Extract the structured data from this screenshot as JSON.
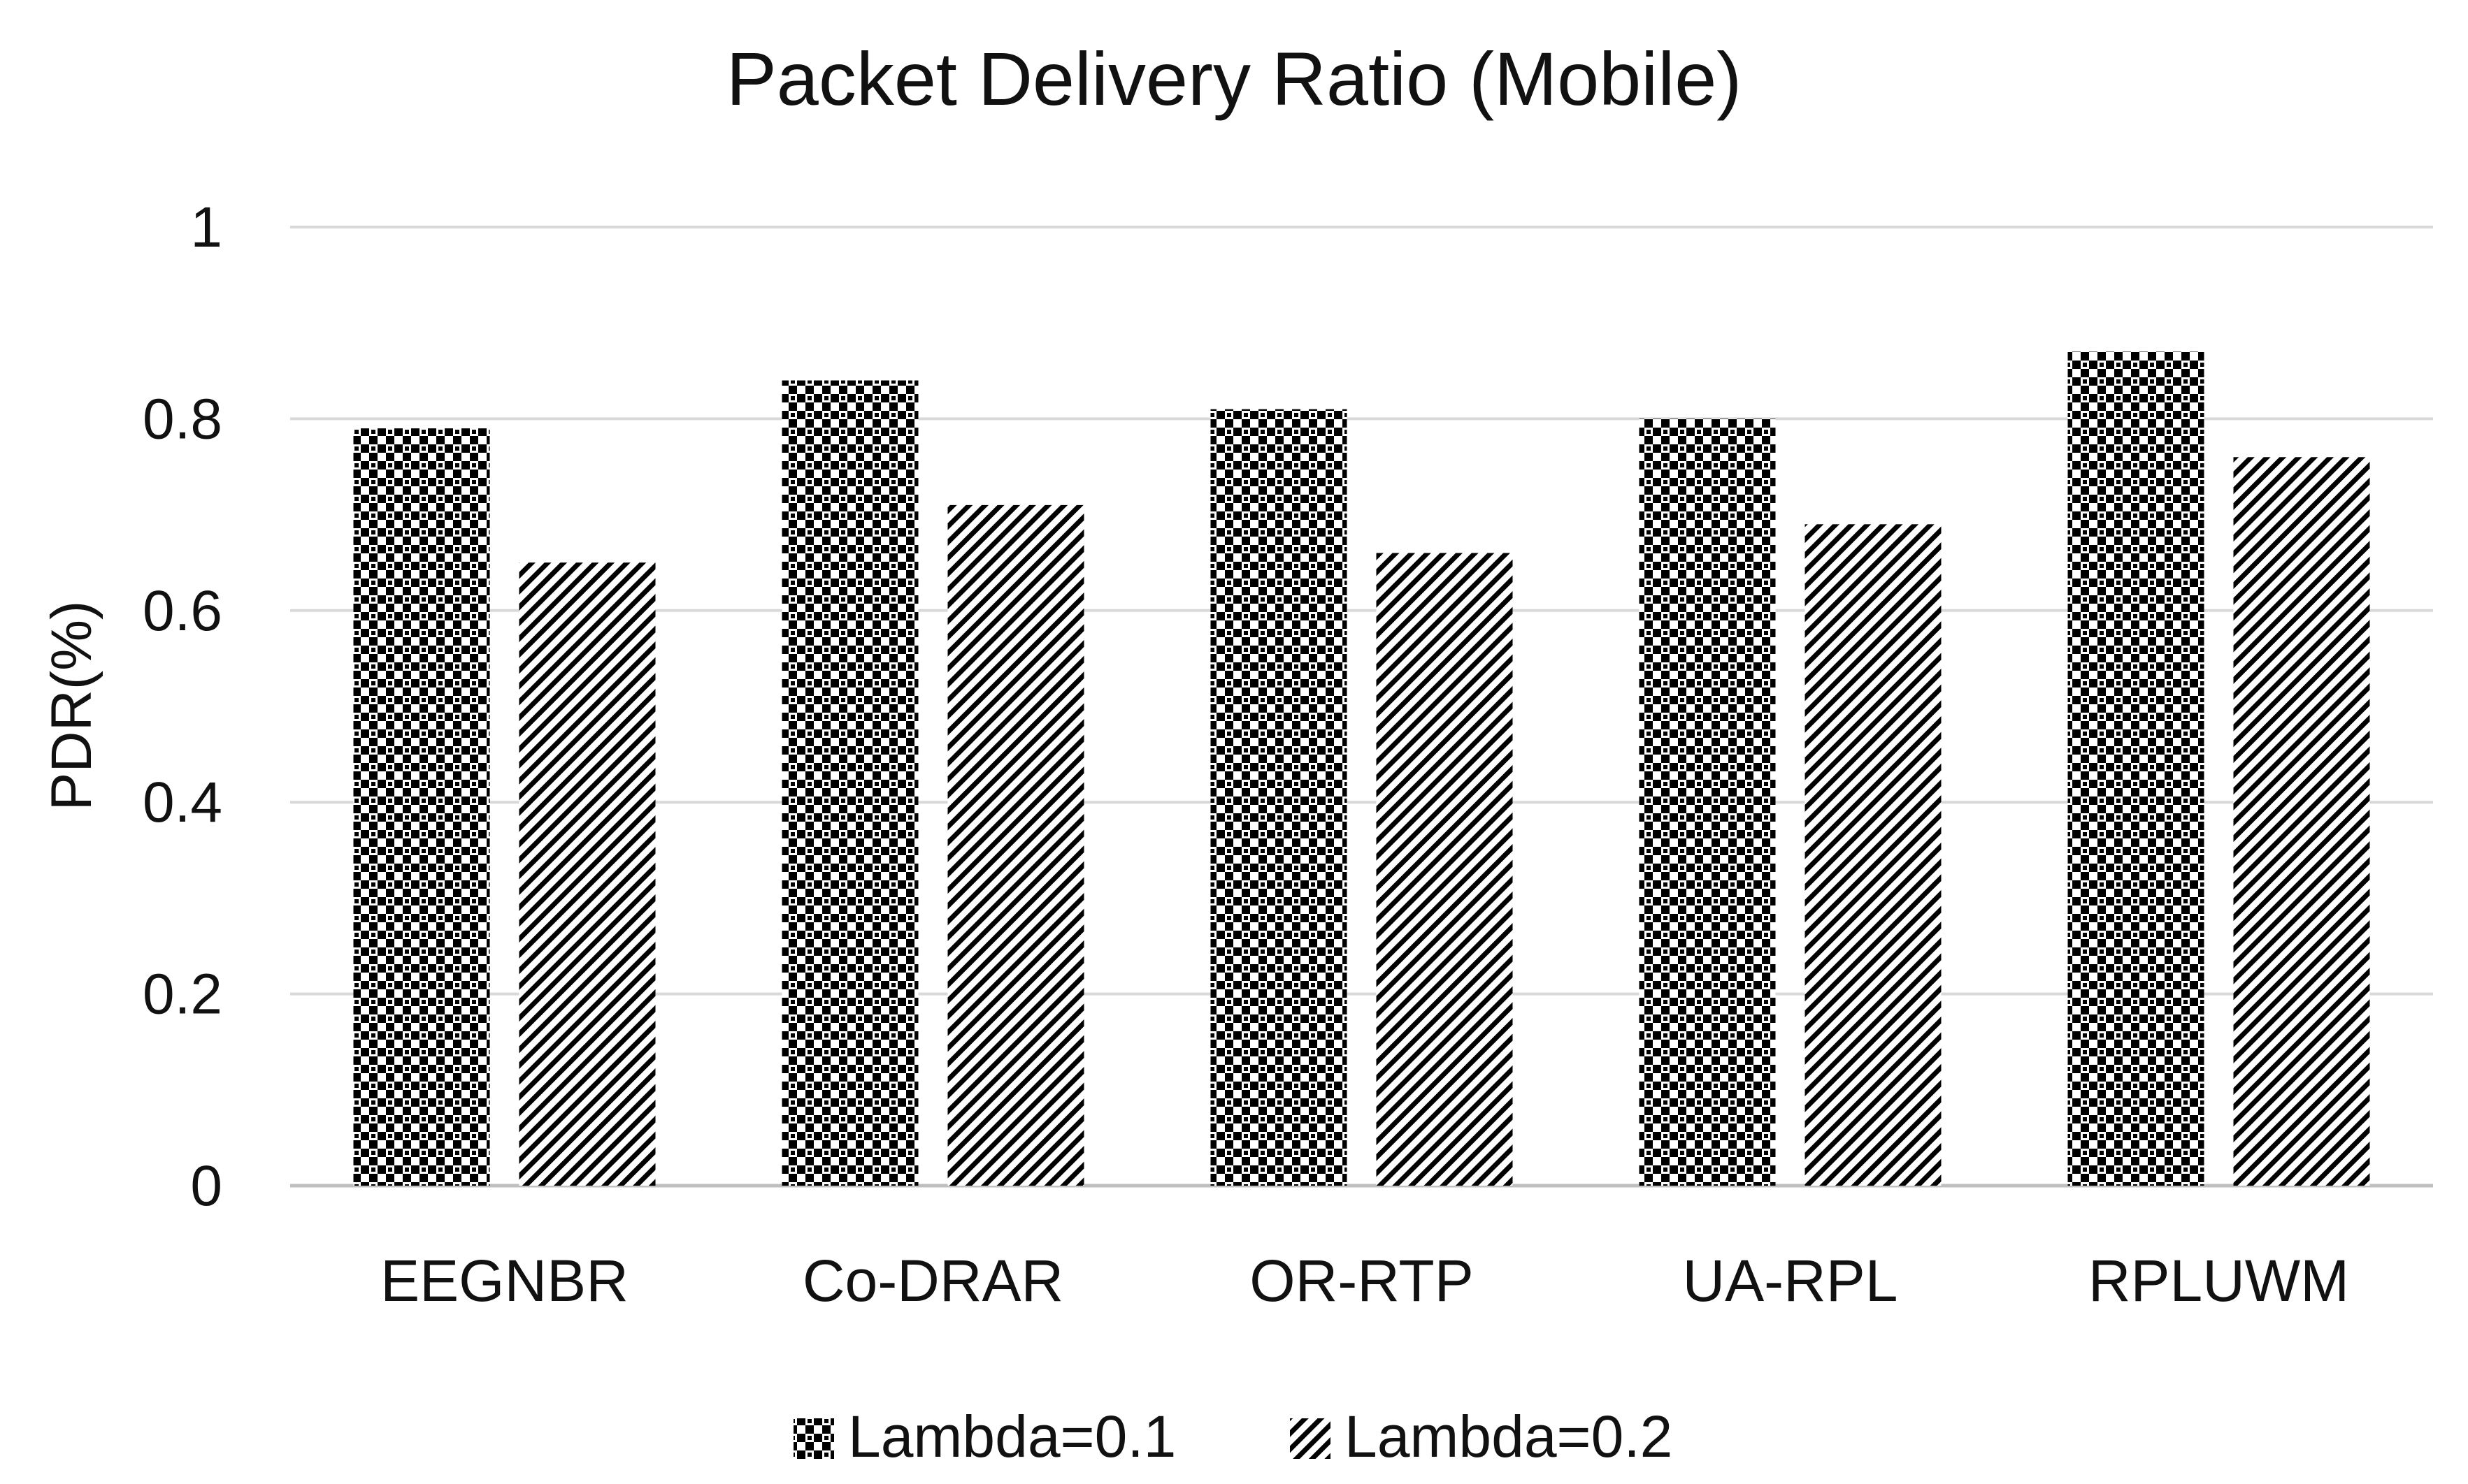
{
  "chart_data": {
    "type": "bar",
    "title": "Packet Delivery Ratio (Mobile)",
    "xlabel": "",
    "ylabel": "PDR(%)",
    "ylim": [
      0,
      1
    ],
    "yticks": [
      0,
      0.2,
      0.4,
      0.6,
      0.8,
      1
    ],
    "ytick_labels": [
      "0",
      "0.2",
      "0.4",
      "0.6",
      "0.8",
      "1"
    ],
    "grid": true,
    "legend_position": "bottom",
    "categories": [
      "EEGNBR",
      "Co-DRAR",
      "OR-RTP",
      "UA-RPL",
      "RPLUWM"
    ],
    "series": [
      {
        "name": "Lambda=0.1",
        "pattern": "checker",
        "color": "#000000",
        "values": [
          0.79,
          0.84,
          0.81,
          0.8,
          0.87
        ]
      },
      {
        "name": "Lambda=0.2",
        "pattern": "diagonal",
        "color": "#000000",
        "values": [
          0.65,
          0.71,
          0.66,
          0.69,
          0.76
        ]
      }
    ],
    "colors": {
      "grid": "#d9d9d9",
      "text": "#111111",
      "background": "#ffffff"
    }
  }
}
